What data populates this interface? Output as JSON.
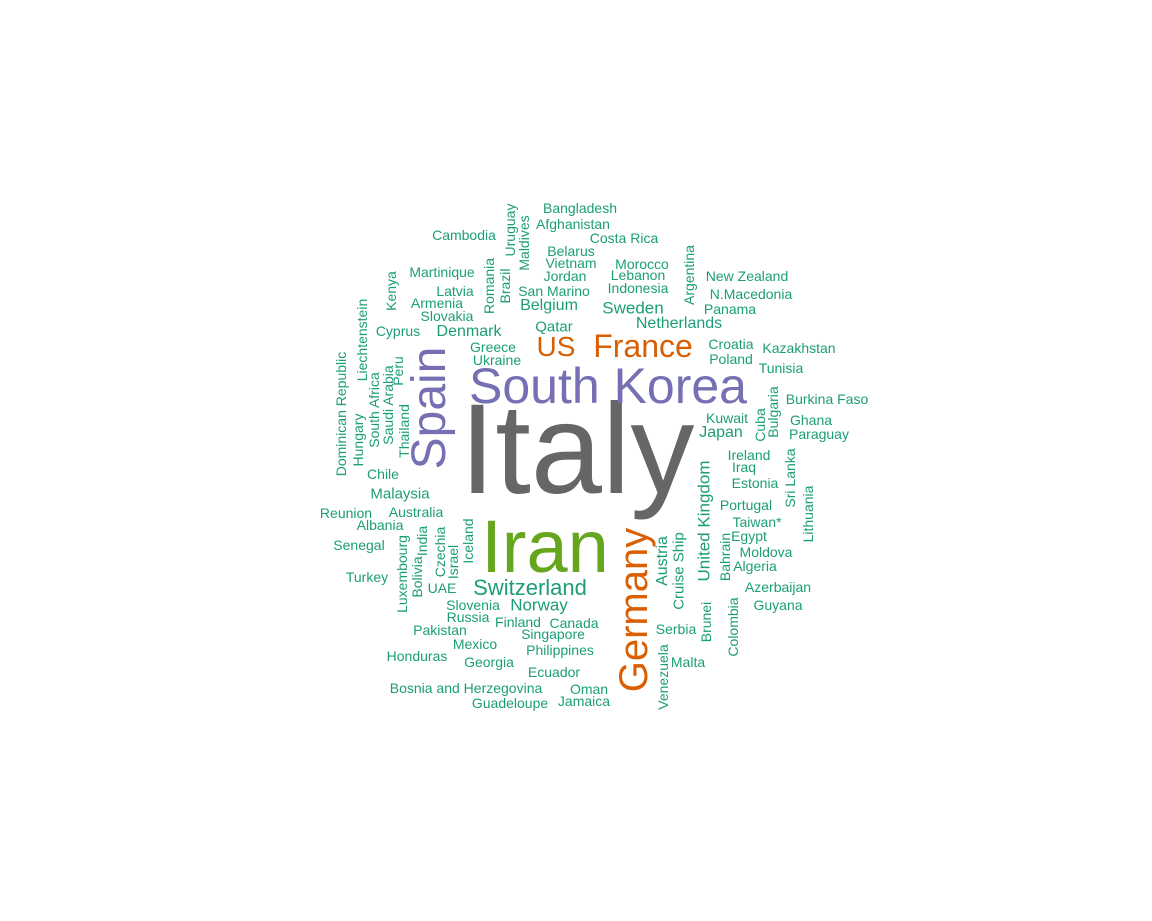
{
  "colors": {
    "largest": "#666666",
    "large": "#66a61e",
    "medium_purple": "#7570b3",
    "medium_orange": "#d95f02",
    "small": "#1b9e77"
  },
  "words": [
    {
      "text": "Italy",
      "color": "largest",
      "vertical": false
    },
    {
      "text": "Iran",
      "color": "large",
      "vertical": false
    },
    {
      "text": "South Korea",
      "color": "medium_purple",
      "vertical": false
    },
    {
      "text": "Spain",
      "color": "medium_purple",
      "vertical": true
    },
    {
      "text": "Germany",
      "color": "medium_orange",
      "vertical": true
    },
    {
      "text": "France",
      "color": "medium_orange",
      "vertical": false
    },
    {
      "text": "US",
      "color": "medium_orange",
      "vertical": false
    },
    {
      "text": "Switzerland",
      "color": "small",
      "vertical": false
    },
    {
      "text": "United Kingdom",
      "color": "small",
      "vertical": true
    },
    {
      "text": "Netherlands",
      "color": "small",
      "vertical": false
    },
    {
      "text": "Sweden",
      "color": "small",
      "vertical": false
    },
    {
      "text": "Norway",
      "color": "small",
      "vertical": false
    },
    {
      "text": "Austria",
      "color": "small",
      "vertical": true
    },
    {
      "text": "Belgium",
      "color": "small",
      "vertical": false
    },
    {
      "text": "Denmark",
      "color": "small",
      "vertical": false
    },
    {
      "text": "Japan",
      "color": "small",
      "vertical": false
    },
    {
      "text": "Cruise Ship",
      "color": "small",
      "vertical": true
    },
    {
      "text": "Malaysia",
      "color": "small",
      "vertical": false
    },
    {
      "text": "Qatar",
      "color": "small",
      "vertical": false
    },
    {
      "text": "Bangladesh",
      "color": "small",
      "vertical": false
    },
    {
      "text": "Afghanistan",
      "color": "small",
      "vertical": false
    },
    {
      "text": "Cambodia",
      "color": "small",
      "vertical": false
    },
    {
      "text": "Uruguay",
      "color": "small",
      "vertical": true
    },
    {
      "text": "Maldives",
      "color": "small",
      "vertical": true
    },
    {
      "text": "Costa Rica",
      "color": "small",
      "vertical": false
    },
    {
      "text": "Belarus",
      "color": "small",
      "vertical": false
    },
    {
      "text": "Vietnam",
      "color": "small",
      "vertical": false
    },
    {
      "text": "Morocco",
      "color": "small",
      "vertical": false
    },
    {
      "text": "Jordan",
      "color": "small",
      "vertical": false
    },
    {
      "text": "Lebanon",
      "color": "small",
      "vertical": false
    },
    {
      "text": "Argentina",
      "color": "small",
      "vertical": true
    },
    {
      "text": "New Zealand",
      "color": "small",
      "vertical": false
    },
    {
      "text": "Martinique",
      "color": "small",
      "vertical": false
    },
    {
      "text": "Romania",
      "color": "small",
      "vertical": true
    },
    {
      "text": "Brazil",
      "color": "small",
      "vertical": true
    },
    {
      "text": "San Marino",
      "color": "small",
      "vertical": false
    },
    {
      "text": "Indonesia",
      "color": "small",
      "vertical": false
    },
    {
      "text": "N.Macedonia",
      "color": "small",
      "vertical": false
    },
    {
      "text": "Kenya",
      "color": "small",
      "vertical": true
    },
    {
      "text": "Latvia",
      "color": "small",
      "vertical": false
    },
    {
      "text": "Armenia",
      "color": "small",
      "vertical": false
    },
    {
      "text": "Panama",
      "color": "small",
      "vertical": false
    },
    {
      "text": "Slovakia",
      "color": "small",
      "vertical": false
    },
    {
      "text": "Liechtenstein",
      "color": "small",
      "vertical": true
    },
    {
      "text": "Cyprus",
      "color": "small",
      "vertical": false
    },
    {
      "text": "Croatia",
      "color": "small",
      "vertical": false
    },
    {
      "text": "Greece",
      "color": "small",
      "vertical": false
    },
    {
      "text": "Kazakhstan",
      "color": "small",
      "vertical": false
    },
    {
      "text": "Dominican Republic",
      "color": "small",
      "vertical": true
    },
    {
      "text": "Ukraine",
      "color": "small",
      "vertical": false
    },
    {
      "text": "Poland",
      "color": "small",
      "vertical": false
    },
    {
      "text": "Peru",
      "color": "small",
      "vertical": true
    },
    {
      "text": "Tunisia",
      "color": "small",
      "vertical": false
    },
    {
      "text": "South Africa",
      "color": "small",
      "vertical": true
    },
    {
      "text": "Saudi Arabia",
      "color": "small",
      "vertical": true
    },
    {
      "text": "Burkina Faso",
      "color": "small",
      "vertical": false
    },
    {
      "text": "Bulgaria",
      "color": "small",
      "vertical": true
    },
    {
      "text": "Hungary",
      "color": "small",
      "vertical": true
    },
    {
      "text": "Thailand",
      "color": "small",
      "vertical": true
    },
    {
      "text": "Kuwait",
      "color": "small",
      "vertical": false
    },
    {
      "text": "Cuba",
      "color": "small",
      "vertical": true
    },
    {
      "text": "Ghana",
      "color": "small",
      "vertical": false
    },
    {
      "text": "Paraguay",
      "color": "small",
      "vertical": false
    },
    {
      "text": "Ireland",
      "color": "small",
      "vertical": false
    },
    {
      "text": "Sri Lanka",
      "color": "small",
      "vertical": true
    },
    {
      "text": "Chile",
      "color": "small",
      "vertical": false
    },
    {
      "text": "Iraq",
      "color": "small",
      "vertical": false
    },
    {
      "text": "Estonia",
      "color": "small",
      "vertical": false
    },
    {
      "text": "Lithuania",
      "color": "small",
      "vertical": true
    },
    {
      "text": "Portugal",
      "color": "small",
      "vertical": false
    },
    {
      "text": "Reunion",
      "color": "small",
      "vertical": false
    },
    {
      "text": "Australia",
      "color": "small",
      "vertical": false
    },
    {
      "text": "Taiwan*",
      "color": "small",
      "vertical": false
    },
    {
      "text": "Albania",
      "color": "small",
      "vertical": false
    },
    {
      "text": "Iceland",
      "color": "small",
      "vertical": true
    },
    {
      "text": "Egypt",
      "color": "small",
      "vertical": false
    },
    {
      "text": "India",
      "color": "small",
      "vertical": true
    },
    {
      "text": "Czechia",
      "color": "small",
      "vertical": true
    },
    {
      "text": "Bahrain",
      "color": "small",
      "vertical": true
    },
    {
      "text": "Senegal",
      "color": "small",
      "vertical": false
    },
    {
      "text": "Israel",
      "color": "small",
      "vertical": true
    },
    {
      "text": "Moldova",
      "color": "small",
      "vertical": false
    },
    {
      "text": "Algeria",
      "color": "small",
      "vertical": false
    },
    {
      "text": "Luxembourg",
      "color": "small",
      "vertical": true
    },
    {
      "text": "Bolivia",
      "color": "small",
      "vertical": true
    },
    {
      "text": "Turkey",
      "color": "small",
      "vertical": false
    },
    {
      "text": "Azerbaijan",
      "color": "small",
      "vertical": false
    },
    {
      "text": "UAE",
      "color": "small",
      "vertical": false
    },
    {
      "text": "Colombia",
      "color": "small",
      "vertical": true
    },
    {
      "text": "Guyana",
      "color": "small",
      "vertical": false
    },
    {
      "text": "Slovenia",
      "color": "small",
      "vertical": false
    },
    {
      "text": "Russia",
      "color": "small",
      "vertical": false
    },
    {
      "text": "Brunei",
      "color": "small",
      "vertical": true
    },
    {
      "text": "Finland",
      "color": "small",
      "vertical": false
    },
    {
      "text": "Canada",
      "color": "small",
      "vertical": false
    },
    {
      "text": "Serbia",
      "color": "small",
      "vertical": false
    },
    {
      "text": "Pakistan",
      "color": "small",
      "vertical": false
    },
    {
      "text": "Singapore",
      "color": "small",
      "vertical": false
    },
    {
      "text": "Mexico",
      "color": "small",
      "vertical": false
    },
    {
      "text": "Philippines",
      "color": "small",
      "vertical": false
    },
    {
      "text": "Venezuela",
      "color": "small",
      "vertical": true
    },
    {
      "text": "Honduras",
      "color": "small",
      "vertical": false
    },
    {
      "text": "Georgia",
      "color": "small",
      "vertical": false
    },
    {
      "text": "Malta",
      "color": "small",
      "vertical": false
    },
    {
      "text": "Ecuador",
      "color": "small",
      "vertical": false
    },
    {
      "text": "Bosnia and Herzegovina",
      "color": "small",
      "vertical": false
    },
    {
      "text": "Oman",
      "color": "small",
      "vertical": false
    },
    {
      "text": "Jamaica",
      "color": "small",
      "vertical": false
    },
    {
      "text": "Guadeloupe",
      "color": "small",
      "vertical": false
    }
  ]
}
